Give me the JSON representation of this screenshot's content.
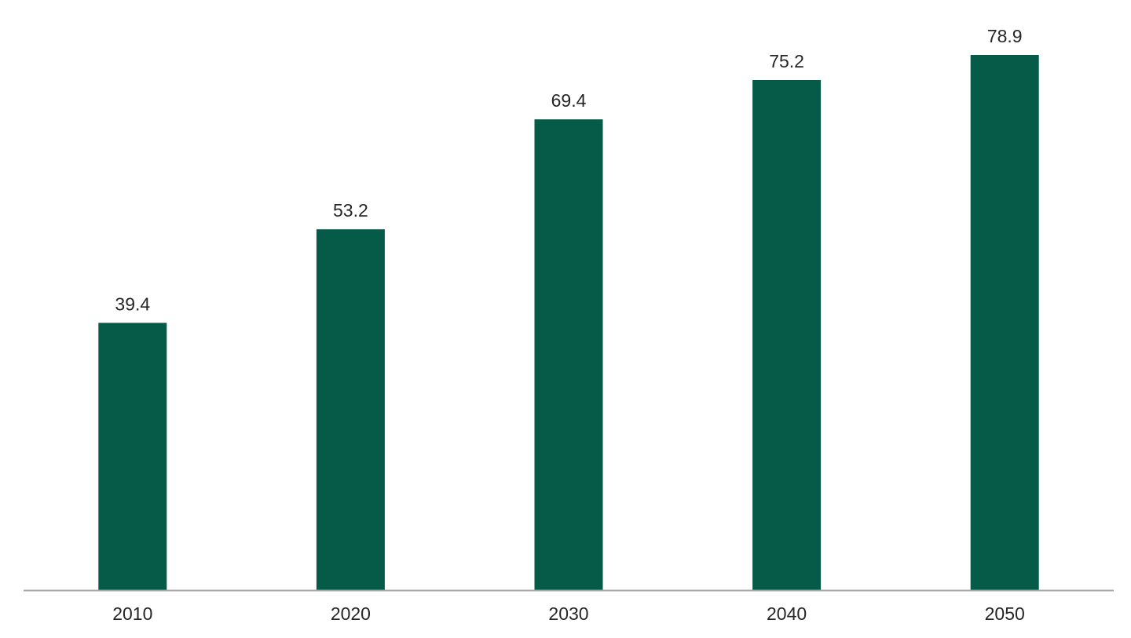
{
  "chart_data": {
    "type": "bar",
    "categories": [
      "2010",
      "2020",
      "2030",
      "2040",
      "2050"
    ],
    "values": [
      39.4,
      53.2,
      69.4,
      75.2,
      78.9
    ],
    "data_labels": [
      "39.4",
      "53.2",
      "69.4",
      "75.2",
      "78.9"
    ],
    "title": "",
    "xlabel": "",
    "ylabel": "",
    "ylim": [
      0,
      87
    ],
    "grid": false,
    "legend": "none",
    "y_axis_visible": false,
    "colors": {
      "bar": "#055a48",
      "axis": "#a6a6a6",
      "text": "#262626"
    }
  }
}
